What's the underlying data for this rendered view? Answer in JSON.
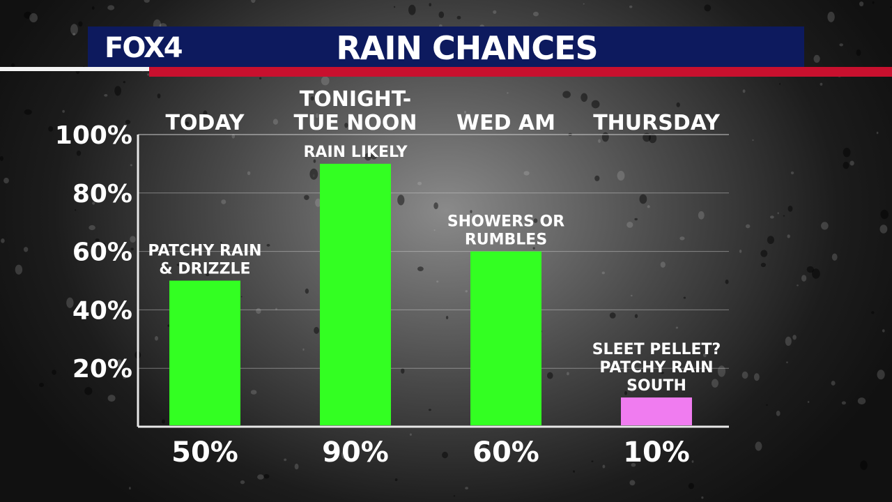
{
  "header": {
    "logo": "FOX4",
    "title": "RAIN CHANCES"
  },
  "colors": {
    "header_blue": "#0d1a5e",
    "header_red": "#c8102e",
    "bar_green": "#33ff22",
    "bar_pink": "#f07cf0"
  },
  "chart_data": {
    "type": "bar",
    "title": "RAIN CHANCES",
    "xlabel": "",
    "ylabel": "",
    "ylim": [
      0,
      100
    ],
    "yticks": [
      "20%",
      "40%",
      "60%",
      "80%",
      "100%"
    ],
    "ytick_values": [
      20,
      40,
      60,
      80,
      100
    ],
    "grid": true,
    "categories": [
      {
        "lines": [
          "TODAY"
        ]
      },
      {
        "lines": [
          "TONIGHT-",
          "TUE NOON"
        ]
      },
      {
        "lines": [
          "WED AM"
        ]
      },
      {
        "lines": [
          "THURSDAY"
        ]
      }
    ],
    "values": [
      50,
      90,
      60,
      10
    ],
    "value_labels": [
      "50%",
      "90%",
      "60%",
      "10%"
    ],
    "bar_colors": [
      "#33ff22",
      "#33ff22",
      "#33ff22",
      "#f07cf0"
    ],
    "annotations": [
      {
        "lines": [
          "PATCHY RAIN",
          "& DRIZZLE"
        ]
      },
      {
        "lines": [
          "RAIN LIKELY"
        ]
      },
      {
        "lines": [
          "SHOWERS OR",
          "RUMBLES"
        ]
      },
      {
        "lines": [
          "SLEET PELLET?",
          "PATCHY RAIN",
          "SOUTH"
        ]
      }
    ]
  }
}
